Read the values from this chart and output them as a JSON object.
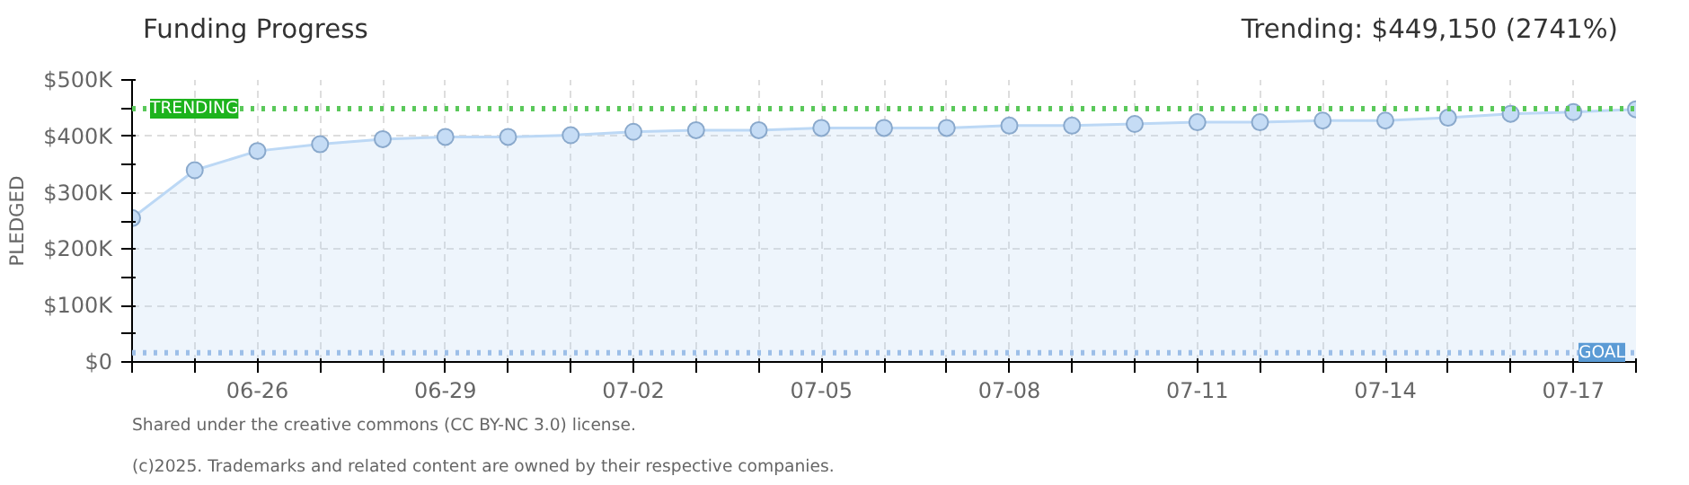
{
  "chart_data": {
    "type": "area",
    "title": "Funding Progress",
    "ylabel": "PLEDGED",
    "annotations": [
      "Trending: $449,150 (2741%)",
      "(c)2025. Trademarks and related content are owned by their respective companies.",
      "Shared under the creative commons (CC BY-NC 3.0) license."
    ],
    "x": [
      "2025-06-24",
      "2025-06-25",
      "2025-06-26",
      "2025-06-27",
      "2025-06-28",
      "2025-06-29",
      "2025-06-30",
      "2025-07-01",
      "2025-07-02",
      "2025-07-03",
      "2025-07-04",
      "2025-07-05",
      "2025-07-06",
      "2025-07-07",
      "2025-07-08",
      "2025-07-09",
      "2025-07-10",
      "2025-07-11",
      "2025-07-12",
      "2025-07-13",
      "2025-07-14",
      "2025-07-15",
      "2025-07-16",
      "2025-07-17",
      "2025-07-18"
    ],
    "series": [
      {
        "color": "#bcd8f5",
        "values": [
          255000,
          340000,
          374000,
          386000,
          395000,
          399000,
          399000,
          402000,
          408000,
          411000,
          411000,
          415000,
          415000,
          415000,
          419000,
          419000,
          422000,
          425000,
          425000,
          428000,
          428000,
          433000,
          440000,
          443000,
          448000
        ]
      }
    ],
    "xlim": [
      "2025-06-24",
      "2025-07-18"
    ],
    "xticks": [
      {
        "value": "2025-06-24",
        "label": null
      },
      {
        "value": "2025-06-25",
        "label": null
      },
      {
        "value": "2025-06-26",
        "label": "06-26"
      },
      {
        "value": "2025-06-27",
        "label": null
      },
      {
        "value": "2025-06-28",
        "label": null
      },
      {
        "value": "2025-06-29",
        "label": "06-29"
      },
      {
        "value": "2025-06-30",
        "label": null
      },
      {
        "value": "2025-07-01",
        "label": null
      },
      {
        "value": "2025-07-02",
        "label": "07-02"
      },
      {
        "value": "2025-07-03",
        "label": null
      },
      {
        "value": "2025-07-04",
        "label": null
      },
      {
        "value": "2025-07-05",
        "label": "07-05"
      },
      {
        "value": "2025-07-06",
        "label": null
      },
      {
        "value": "2025-07-07",
        "label": null
      },
      {
        "value": "2025-07-08",
        "label": "07-08"
      },
      {
        "value": "2025-07-09",
        "label": null
      },
      {
        "value": "2025-07-10",
        "label": null
      },
      {
        "value": "2025-07-11",
        "label": "07-11"
      },
      {
        "value": "2025-07-12",
        "label": null
      },
      {
        "value": "2025-07-13",
        "label": null
      },
      {
        "value": "2025-07-14",
        "label": "07-14"
      },
      {
        "value": "2025-07-15",
        "label": null
      },
      {
        "value": "2025-07-16",
        "label": null
      },
      {
        "value": "2025-07-17",
        "label": "07-17"
      },
      {
        "value": "2025-07-18",
        "label": null
      }
    ],
    "ylim": [
      0,
      500000
    ],
    "yticks": [
      {
        "value": 0,
        "label": "$0"
      },
      {
        "value": 50000,
        "label": null
      },
      {
        "value": 100000,
        "label": "$100K"
      },
      {
        "value": 150000,
        "label": null
      },
      {
        "value": 200000,
        "label": "$200K"
      },
      {
        "value": 250000,
        "label": null
      },
      {
        "value": 300000,
        "label": "$300K"
      },
      {
        "value": 350000,
        "label": null
      },
      {
        "value": 400000,
        "label": "$400K"
      },
      {
        "value": 450000,
        "label": null
      },
      {
        "value": 500000,
        "label": "$500K"
      }
    ],
    "ref_lines": [
      {
        "axis": "y",
        "value": 449150,
        "label": "TRENDING",
        "color": "#5ac85a",
        "line_style": "dotted"
      },
      {
        "axis": "y",
        "value": 16400,
        "label": "GOAL",
        "color": "#9dbfe8",
        "line_style": "dotted"
      }
    ],
    "grid": true,
    "marker": "circle",
    "line_style": "solid"
  }
}
